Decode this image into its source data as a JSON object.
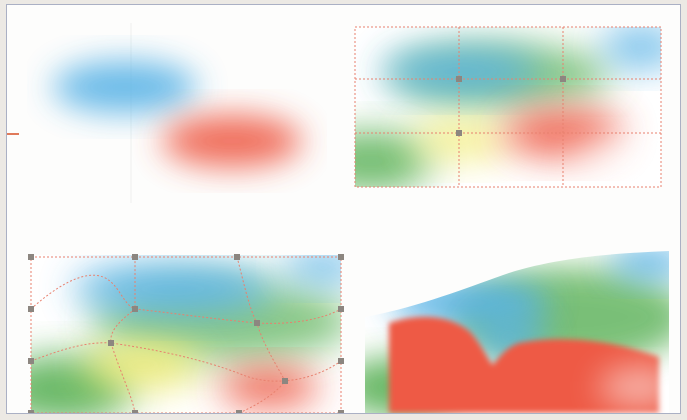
{
  "colors": {
    "blue": "#5ab3e6",
    "red": "#ee5a45",
    "green": "#58b055",
    "yellow": "#f0ea6a",
    "grid_line": "#e8806e",
    "handle": "#8c8680",
    "frame_border": "#aab0c4",
    "background": "#fdfdfc"
  },
  "panels": [
    {
      "name": "gradient-blobs"
    },
    {
      "name": "mesh-grid"
    },
    {
      "name": "warped-mesh"
    },
    {
      "name": "distorted-result"
    }
  ]
}
